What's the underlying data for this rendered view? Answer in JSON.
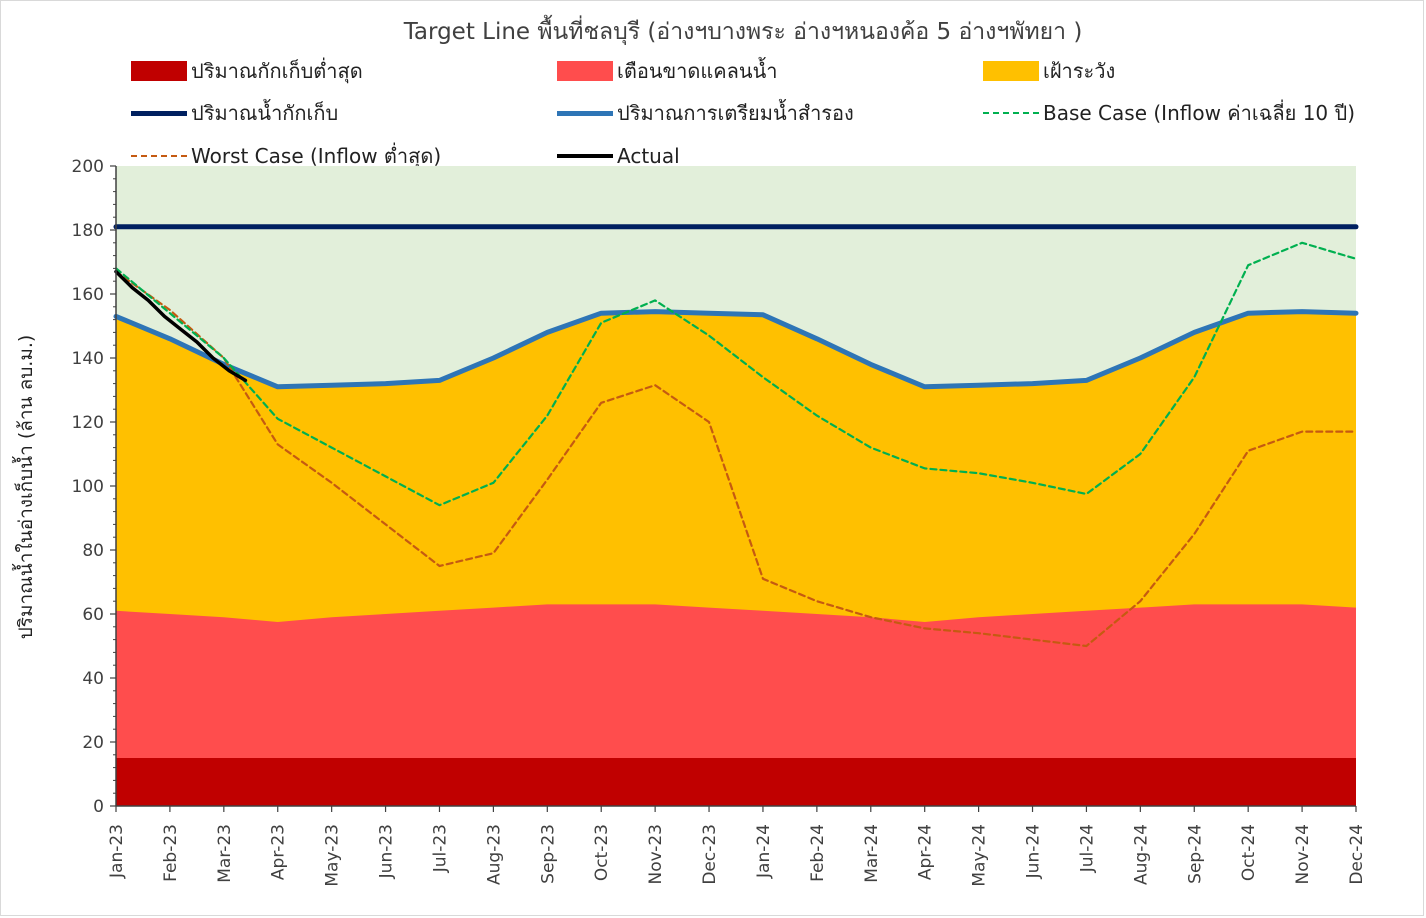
{
  "chart_data": {
    "type": "area",
    "title": "Target Line พื้นที่ชลบุรี (อ่างฯบางพระ อ่างฯหนองค้อ 5 อ่างฯพัทยา )",
    "ylabel": "ปริมาณน้ำในอ่างเก็บน้ำ (ล้าน ลบ.ม.)",
    "xlabel": "",
    "ylim": [
      0,
      200
    ],
    "yticks": [
      "0",
      "20",
      "40",
      "60",
      "80",
      "100",
      "120",
      "140",
      "160",
      "180",
      "200"
    ],
    "categories": [
      "Jan-23",
      "Feb-23",
      "Mar-23",
      "Apr-23",
      "May-23",
      "Jun-23",
      "Jul-23",
      "Aug-23",
      "Sep-23",
      "Oct-23",
      "Nov-23",
      "Dec-23",
      "Jan-24",
      "Feb-24",
      "Mar-24",
      "Apr-24",
      "May-24",
      "Jun-24",
      "Jul-24",
      "Aug-24",
      "Sep-24",
      "Oct-24",
      "Nov-24",
      "Dec-24"
    ],
    "grid": false,
    "legend_position": "top",
    "series": [
      {
        "name": "ปริมาณกักเก็บต่ำสุด",
        "kind": "area",
        "color": "#c00000",
        "values": [
          15,
          15,
          15,
          15,
          15,
          15,
          15,
          15,
          15,
          15,
          15,
          15,
          15,
          15,
          15,
          15,
          15,
          15,
          15,
          15,
          15,
          15,
          15,
          15
        ]
      },
      {
        "name": "เตือนขาดแคลนน้ำ",
        "kind": "area",
        "color": "#ff4d4d",
        "values": [
          61,
          60,
          59,
          57.5,
          59,
          60,
          61,
          62,
          63,
          63,
          63,
          62,
          61,
          60,
          59,
          57.5,
          59,
          60,
          61,
          62,
          63,
          63,
          63,
          62
        ]
      },
      {
        "name": "เฝ้าระวัง",
        "kind": "area",
        "color": "#ffc000",
        "values": [
          153,
          146,
          138,
          131,
          131.5,
          132,
          133,
          140,
          148,
          154,
          154.5,
          154,
          153.5,
          146,
          138,
          131,
          131.5,
          132,
          133,
          140,
          148,
          154,
          154.5,
          154
        ]
      },
      {
        "name": "ปริมาณน้ำกักเก็บ",
        "kind": "line",
        "color": "#002060",
        "values": [
          181,
          181,
          181,
          181,
          181,
          181,
          181,
          181,
          181,
          181,
          181,
          181,
          181,
          181,
          181,
          181,
          181,
          181,
          181,
          181,
          181,
          181,
          181,
          181
        ]
      },
      {
        "name": "ปริมาณการเตรียมน้ำสำรอง",
        "kind": "line",
        "color": "#2e75b6",
        "values": [
          153,
          146,
          138,
          131,
          131.5,
          132,
          133,
          140,
          148,
          154,
          154.5,
          154,
          153.5,
          146,
          138,
          131,
          131.5,
          132,
          133,
          140,
          148,
          154,
          154.5,
          154
        ]
      },
      {
        "name": "Base Case (Inflow ค่าเฉลี่ย 10 ปี)",
        "kind": "dashed",
        "color": "#00b050",
        "values": [
          168,
          154,
          140,
          121,
          112,
          103,
          94,
          101,
          122,
          151,
          158,
          147,
          134,
          122,
          112,
          105.5,
          104,
          101,
          97.5,
          110,
          134,
          169,
          176,
          171
        ]
      },
      {
        "name": "Worst Case (Inflow ต่ำสุด)",
        "kind": "dashed",
        "color": "#c55a11",
        "values": [
          167,
          155,
          140,
          113,
          101,
          88,
          75,
          79,
          102,
          126,
          131.5,
          120,
          71,
          64,
          59,
          55.5,
          54,
          52,
          50,
          64,
          85,
          111,
          117,
          117
        ]
      },
      {
        "name": "Actual",
        "kind": "line",
        "color": "#000000",
        "x": [
          0,
          0.3,
          0.6,
          0.9,
          1.2,
          1.5,
          1.8,
          2.1,
          2.4
        ],
        "values": [
          167,
          162,
          158,
          153,
          149,
          145,
          140,
          136,
          133
        ]
      }
    ],
    "background_zone": {
      "color": "#e2efda",
      "upper": 200
    }
  },
  "legend": [
    {
      "label": "ปริมาณกักเก็บต่ำสุด",
      "kind": "box",
      "color": "#c00000"
    },
    {
      "label": "เตือนขาดแคลนน้ำ",
      "kind": "box",
      "color": "#ff4d4d"
    },
    {
      "label": "เฝ้าระวัง",
      "kind": "box",
      "color": "#ffc000"
    },
    {
      "label": "ปริมาณน้ำกักเก็บ",
      "kind": "line",
      "color": "#002060"
    },
    {
      "label": "ปริมาณการเตรียมน้ำสำรอง",
      "kind": "line",
      "color": "#2e75b6"
    },
    {
      "label": "Base Case (Inflow ค่าเฉลี่ย 10 ปี)",
      "kind": "dashed",
      "color": "#00b050"
    },
    {
      "label": "Worst Case (Inflow ต่ำสุด)",
      "kind": "dashed",
      "color": "#c55a11"
    },
    {
      "label": "Actual",
      "kind": "line",
      "color": "#000000"
    }
  ]
}
